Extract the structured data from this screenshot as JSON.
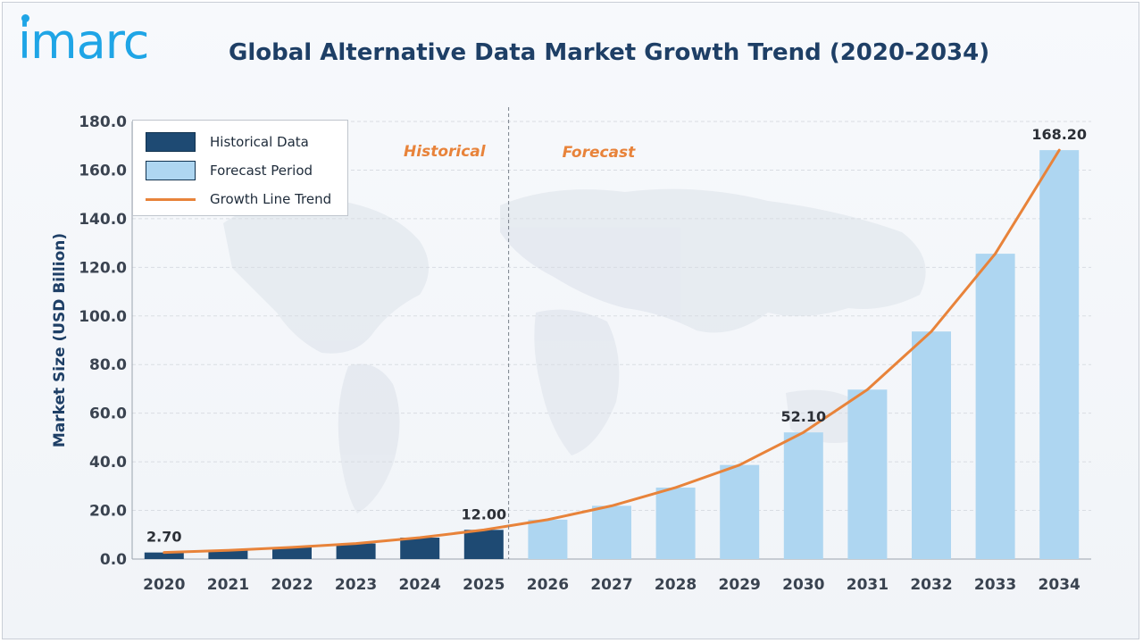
{
  "brand": {
    "logo_text": "imarc"
  },
  "colors": {
    "title": "#1e3f66",
    "historical_bar": "#1e4a73",
    "forecast_bar": "#aed6f1",
    "growth_line": "#e8833a",
    "phase_label": "#e8833a",
    "grid": "#d9dde3"
  },
  "chart_data": {
    "type": "bar",
    "title": "Global Alternative Data Market Growth Trend (2020-2034)",
    "ylabel": "Market Size (USD Billion)",
    "xlabel": "",
    "ylim": [
      0,
      180
    ],
    "yticks": [
      "0.0",
      "20.0",
      "40.0",
      "60.0",
      "80.0",
      "100.0",
      "120.0",
      "140.0",
      "160.0",
      "180.0"
    ],
    "grid": true,
    "legend_position": "top-left",
    "categories": [
      "2020",
      "2021",
      "2022",
      "2023",
      "2024",
      "2025",
      "2026",
      "2027",
      "2028",
      "2029",
      "2030",
      "2031",
      "2032",
      "2033",
      "2034"
    ],
    "series": [
      {
        "name": "Historical Data",
        "type": "bar",
        "values": [
          2.7,
          3.6,
          4.8,
          6.4,
          8.8,
          12.0,
          null,
          null,
          null,
          null,
          null,
          null,
          null,
          null,
          null
        ]
      },
      {
        "name": "Forecast Period",
        "type": "bar",
        "values": [
          null,
          null,
          null,
          null,
          null,
          null,
          16.2,
          21.9,
          29.4,
          38.7,
          52.1,
          69.7,
          93.6,
          125.6,
          168.2
        ]
      },
      {
        "name": "Growth Line Trend",
        "type": "line",
        "values": [
          2.7,
          3.6,
          4.8,
          6.4,
          8.8,
          12.0,
          16.2,
          21.9,
          29.4,
          38.7,
          52.1,
          69.7,
          93.6,
          125.6,
          168.2
        ]
      }
    ],
    "data_labels": [
      {
        "category": "2020",
        "text": "2.70"
      },
      {
        "category": "2025",
        "text": "12.00"
      },
      {
        "category": "2030",
        "text": "52.10"
      },
      {
        "category": "2034",
        "text": "168.20"
      }
    ],
    "annotations": {
      "historical_label": "Historical",
      "forecast_label": "Forecast",
      "divider_after_category": "2025"
    }
  }
}
